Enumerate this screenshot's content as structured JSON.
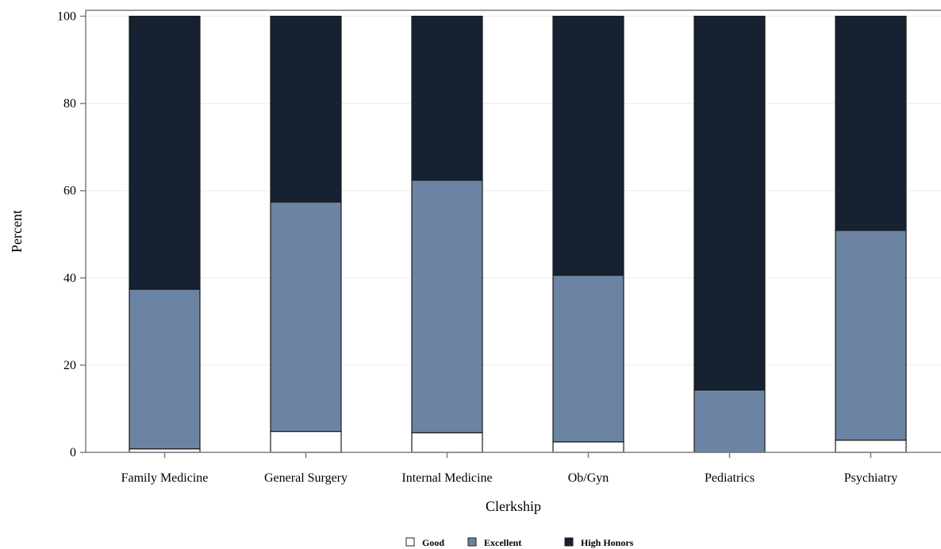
{
  "chart_data": {
    "type": "bar",
    "stacked": true,
    "xlabel": "Clerkship",
    "ylabel": "Percent",
    "ylim": [
      0,
      100
    ],
    "yticks": [
      0,
      20,
      40,
      60,
      80,
      100
    ],
    "grid": true,
    "legend_position": "bottom",
    "categories": [
      "Family Medicine",
      "General Surgery",
      "Internal Medicine",
      "Ob/Gyn",
      "Pediatrics",
      "Psychiatry"
    ],
    "series": [
      {
        "name": "Good",
        "color": "#ffffff",
        "values": [
          0.8,
          4.8,
          4.5,
          2.4,
          0.0,
          2.8
        ]
      },
      {
        "name": "Excellent",
        "color": "#6b84a3",
        "values": [
          36.6,
          52.6,
          57.9,
          38.2,
          14.3,
          48.1
        ]
      },
      {
        "name": "High Honors",
        "color": "#162131",
        "values": [
          62.6,
          42.6,
          37.6,
          59.4,
          85.7,
          49.1
        ]
      }
    ]
  }
}
